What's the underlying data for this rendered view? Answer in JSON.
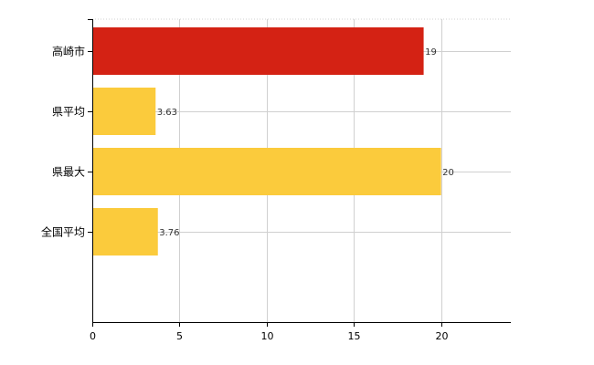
{
  "colors": {
    "highlight": "#D42214",
    "bar": "#FBCB3C",
    "grid": "#D0D0D0",
    "axis": "#000000"
  },
  "chart_data": {
    "type": "bar",
    "orientation": "horizontal",
    "categories": [
      "高崎市",
      "県平均",
      "県最大",
      "全国平均"
    ],
    "values": [
      19,
      3.63,
      20,
      3.76
    ],
    "value_labels": [
      "19",
      "3.63",
      "20",
      "3.76"
    ],
    "highlight_index": 0,
    "xlim": [
      0,
      24
    ],
    "x_ticks": [
      0,
      5,
      10,
      15,
      20
    ],
    "x_tick_labels": [
      "0",
      "5",
      "10",
      "15",
      "20"
    ],
    "grid": true,
    "title": "",
    "xlabel": "",
    "ylabel": ""
  }
}
